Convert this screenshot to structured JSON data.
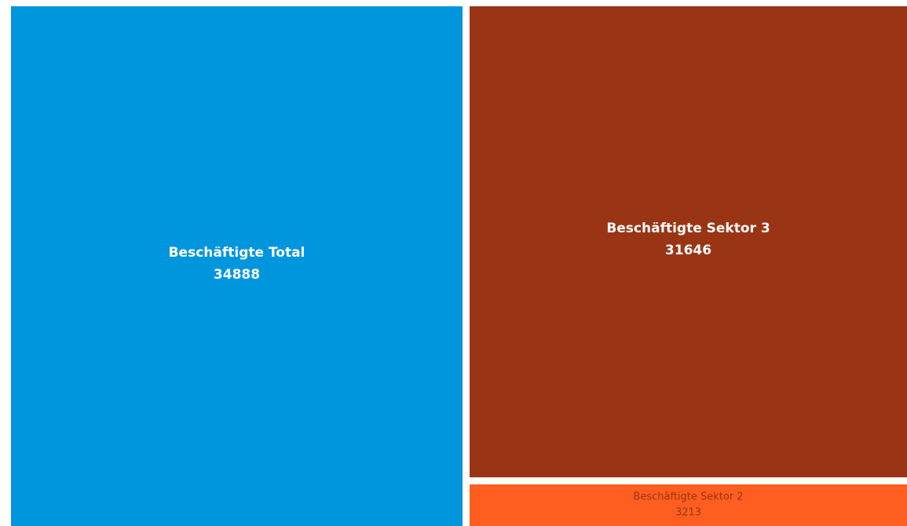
{
  "chart_data": {
    "type": "treemap",
    "title": "",
    "items": [
      {
        "label": "Beschäftigte Total",
        "value": 34888,
        "value_text": "34888",
        "color": "#0096DE",
        "text_color": "#FFFFFF"
      },
      {
        "label": "Beschäftigte Sektor 3",
        "value": 31646,
        "value_text": "31646",
        "color": "#993514",
        "text_color": "#FFFFFF"
      },
      {
        "label": "Beschäftigte Sektor 2",
        "value": 3213,
        "value_text": "3213",
        "color": "#FF5E20",
        "text_color": "#993514"
      }
    ]
  }
}
